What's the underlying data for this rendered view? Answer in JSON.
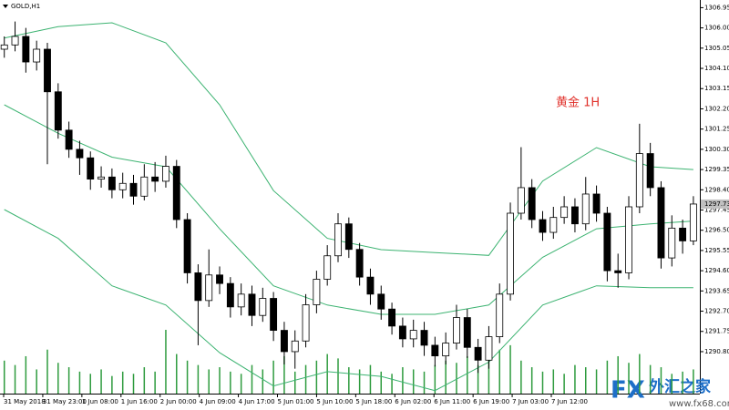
{
  "chart_data": {
    "type": "candlestick",
    "title": "GOLD,H1",
    "annotation": "黄金 1H",
    "open": [
      1305.0,
      1305.2,
      1305.6,
      1304.4,
      1305.0,
      1303.0,
      1301.2,
      1300.3,
      1299.9,
      1298.9,
      1299.0,
      1298.4,
      1298.7,
      1298.1,
      1299.0,
      1298.8,
      1299.5,
      1297.0,
      1294.5,
      1293.2,
      1294.4,
      1294.0,
      1292.9,
      1293.5,
      1292.5,
      1293.3,
      1291.8,
      1290.8,
      1291.3,
      1293.0,
      1294.2,
      1295.3,
      1296.8,
      1295.6,
      1294.3,
      1293.5,
      1292.8,
      1292.0,
      1291.4,
      1291.8,
      1291.1,
      1290.6,
      1291.2,
      1292.4,
      1291.0,
      1290.4,
      1291.5,
      1293.5,
      1297.3,
      1298.5,
      1297.0,
      1296.4,
      1297.1,
      1297.6,
      1296.8,
      1298.2,
      1297.3,
      1294.6,
      1294.5,
      1297.6,
      1300.1,
      1298.5,
      1295.2,
      1296.6,
      1296.0
    ],
    "high": [
      1305.6,
      1306.3,
      1306.0,
      1305.4,
      1305.3,
      1303.4,
      1301.6,
      1300.7,
      1300.2,
      1299.5,
      1299.4,
      1299.2,
      1299.1,
      1299.6,
      1299.7,
      1300.0,
      1299.8,
      1297.3,
      1294.9,
      1295.6,
      1294.8,
      1294.3,
      1294.0,
      1293.9,
      1293.8,
      1293.6,
      1292.2,
      1291.8,
      1293.5,
      1294.6,
      1295.8,
      1297.3,
      1297.1,
      1295.9,
      1294.7,
      1293.9,
      1293.1,
      1292.4,
      1292.3,
      1292.2,
      1291.5,
      1291.7,
      1293.0,
      1292.8,
      1291.4,
      1292.0,
      1294.0,
      1297.8,
      1300.4,
      1298.9,
      1297.4,
      1297.6,
      1298.1,
      1298.0,
      1299.0,
      1298.6,
      1297.6,
      1295.4,
      1298.1,
      1301.5,
      1300.6,
      1298.8,
      1297.2,
      1297.0,
      1298.1
    ],
    "low": [
      1304.6,
      1304.9,
      1303.9,
      1304.0,
      1299.6,
      1300.8,
      1299.9,
      1299.1,
      1298.4,
      1298.5,
      1298.0,
      1298.0,
      1297.7,
      1297.9,
      1298.3,
      1298.5,
      1296.6,
      1294.0,
      1291.1,
      1292.9,
      1293.5,
      1292.4,
      1292.5,
      1292.0,
      1292.2,
      1291.3,
      1290.2,
      1290.0,
      1291.0,
      1292.6,
      1293.9,
      1295.0,
      1295.2,
      1293.9,
      1293.0,
      1292.3,
      1291.6,
      1291.0,
      1291.0,
      1290.6,
      1290.1,
      1290.2,
      1290.9,
      1290.5,
      1289.8,
      1290.0,
      1291.2,
      1293.2,
      1297.0,
      1296.6,
      1296.0,
      1296.1,
      1296.8,
      1296.4,
      1296.5,
      1296.9,
      1294.1,
      1293.8,
      1294.2,
      1297.3,
      1298.1,
      1294.7,
      1294.8,
      1295.4,
      1295.8
    ],
    "close": [
      1305.2,
      1305.6,
      1304.4,
      1305.0,
      1303.0,
      1301.2,
      1300.3,
      1299.9,
      1298.9,
      1299.0,
      1298.4,
      1298.7,
      1298.1,
      1299.0,
      1298.8,
      1299.5,
      1297.0,
      1294.5,
      1293.2,
      1294.4,
      1294.0,
      1292.9,
      1293.5,
      1292.5,
      1293.3,
      1291.8,
      1290.8,
      1291.3,
      1293.0,
      1294.2,
      1295.3,
      1296.8,
      1295.6,
      1294.3,
      1293.5,
      1292.8,
      1292.0,
      1291.4,
      1291.8,
      1291.1,
      1290.6,
      1291.2,
      1292.4,
      1291.0,
      1290.4,
      1291.5,
      1293.5,
      1297.3,
      1298.5,
      1297.0,
      1296.4,
      1297.1,
      1297.6,
      1296.8,
      1298.2,
      1297.3,
      1294.6,
      1294.5,
      1297.6,
      1300.1,
      1298.5,
      1295.2,
      1296.6,
      1296.0,
      1297.73
    ],
    "volume": [
      30,
      26,
      34,
      22,
      40,
      28,
      24,
      20,
      18,
      22,
      16,
      20,
      18,
      24,
      20,
      58,
      36,
      30,
      26,
      22,
      24,
      20,
      18,
      26,
      22,
      30,
      34,
      20,
      26,
      30,
      36,
      32,
      24,
      22,
      26,
      20,
      18,
      24,
      22,
      20,
      26,
      30,
      28,
      34,
      26,
      32,
      40,
      44,
      30,
      24,
      20,
      22,
      18,
      26,
      24,
      22,
      30,
      34,
      28,
      36,
      26,
      24,
      18,
      20,
      22
    ],
    "bands": [
      {
        "color": "#3cb371",
        "x": [
          0,
          5,
          10,
          15,
          20,
          25,
          30,
          35,
          40,
          45,
          50,
          55,
          60,
          64
        ],
        "values": [
          1305.52,
          1306.06,
          1306.24,
          1305.3,
          1302.39,
          1298.36,
          1296.12,
          1295.59,
          1295.45,
          1295.32,
          1298.81,
          1300.38,
          1299.48,
          1299.35
        ]
      },
      {
        "color": "#3cb371",
        "x": [
          0,
          5,
          10,
          15,
          20,
          25,
          30,
          35,
          40,
          45,
          50,
          55,
          60,
          64
        ],
        "values": [
          1302.39,
          1301.05,
          1299.93,
          1299.48,
          1296.57,
          1293.89,
          1292.99,
          1292.55,
          1292.55,
          1292.99,
          1295.23,
          1296.57,
          1296.8,
          1296.93
        ]
      },
      {
        "color": "#3cb371",
        "x": [
          0,
          5,
          10,
          15,
          20,
          25,
          30,
          35,
          40,
          45,
          50,
          55,
          60,
          64
        ],
        "values": [
          1297.47,
          1296.12,
          1293.89,
          1292.99,
          1290.75,
          1289.19,
          1289.86,
          1289.64,
          1288.97,
          1290.31,
          1292.99,
          1293.89,
          1293.8,
          1293.8
        ]
      }
    ],
    "xlim": [
      -0.4,
      64.6
    ],
    "ylim": [
      1288.83,
      1307.31
    ],
    "yticks": [
      1306.95,
      {
        "value": 1306,
        "label": "1306.00"
      },
      1305.05,
      {
        "value": 1304.1,
        "label": "1304.10"
      },
      1303.15,
      {
        "value": 1302.2,
        "label": "1302.20"
      },
      1301.25,
      {
        "value": 1300.3,
        "label": "1300.30"
      },
      1299.35,
      {
        "value": 1298.4,
        "label": "1298.40"
      },
      1297.45,
      {
        "value": 1296.5,
        "label": "1296.50"
      },
      1295.55,
      {
        "value": 1294.6,
        "label": "1294.60"
      },
      1293.65,
      {
        "value": 1292.7,
        "label": "1292.70"
      },
      1291.75,
      {
        "value": 1290.8,
        "label": "1290.80"
      }
    ],
    "xtick_labels": [
      "31 May 2018",
      "31 May 23:00",
      "1 Jun 08:00",
      "1 Jun 16:00",
      "2 Jun 00:00",
      "4 Jun 09:00",
      "4 Jun 17:00",
      "5 Jun 01:00",
      "5 Jun 10:00",
      "5 Jun 18:00",
      "6 Jun 02:00",
      "6 Jun 11:00",
      "6 Jun 19:00",
      "7 Jun 03:00",
      "7 Jun 12:00"
    ],
    "up_color": "#ffffff",
    "down_color": "#000000",
    "volume_color": "#2e9b3e",
    "annotation_color": "#e0302a",
    "watermark": {
      "brand": "FX",
      "name": "外汇之家",
      "url": "www.fx68.com"
    }
  }
}
